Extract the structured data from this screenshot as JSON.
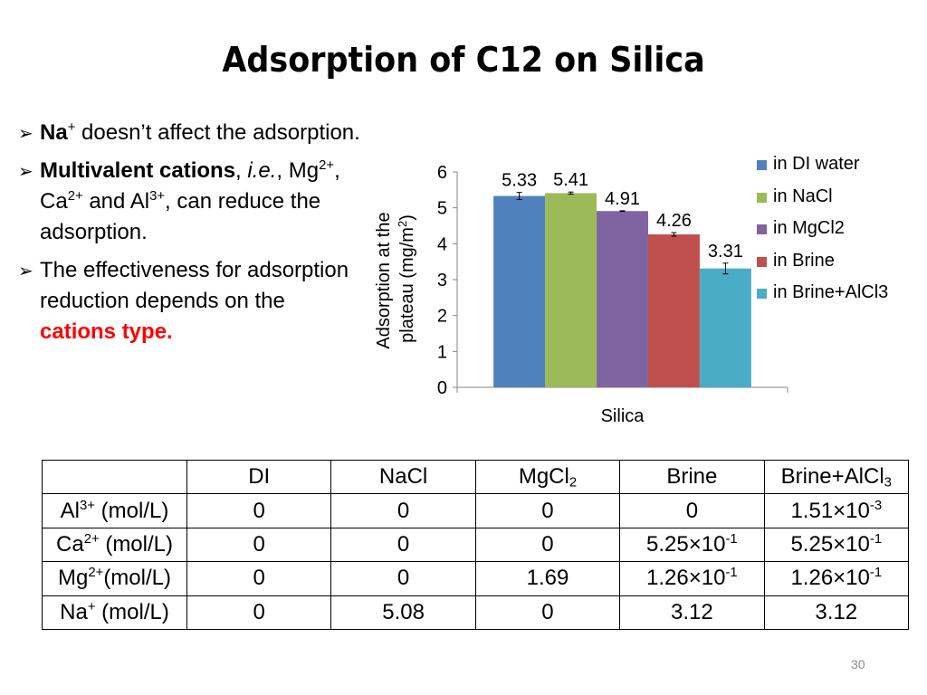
{
  "title": "Adsorption of C12 on Silica",
  "bullets": {
    "b1": {
      "na": "Na",
      "na_sup": "+",
      "rest": " doesn’t affect the adsorption."
    },
    "b2": {
      "bold": "Multivalent cations",
      "comma": ", ",
      "ie": "i.e.",
      "comma2": ", ",
      "mg": "Mg",
      "mg_sup": "2+",
      "sep1": ", ",
      "ca": "Ca",
      "ca_sup": "2+",
      "sep2": " and ",
      "al": "Al",
      "al_sup": "3+",
      "rest": ", can reduce the adsorption."
    },
    "b3": {
      "text": "The effectiveness for adsorption reduction depends on the ",
      "red": "cations type."
    }
  },
  "chart_data": {
    "type": "bar",
    "categories": [
      "Silica"
    ],
    "ylabel_line1": "Adsorption at the",
    "ylabel_line2": "plateau (mg/m",
    "ylabel_sup": "2",
    "ylabel_end": ")",
    "ylim": [
      0,
      6
    ],
    "yticks": [
      0,
      1,
      2,
      3,
      4,
      5,
      6
    ],
    "series": [
      {
        "name": "in DI water",
        "value": 5.33,
        "label": "5.33",
        "error": 0.1,
        "color": "#4f81bd"
      },
      {
        "name": "in NaCl",
        "value": 5.41,
        "label": "5.41",
        "error": 0.03,
        "color": "#9bbb59"
      },
      {
        "name": "in MgCl2",
        "value": 4.91,
        "label": "4.91",
        "error": 0.01,
        "color": "#8064a2"
      },
      {
        "name": "in Brine",
        "value": 4.26,
        "label": "4.26",
        "error": 0.05,
        "color": "#c0504d"
      },
      {
        "name": "in Brine+AlCl3",
        "value": 3.31,
        "label": "3.31",
        "error": 0.15,
        "color": "#4bacc6"
      }
    ],
    "legend_position": "right"
  },
  "table": {
    "header": {
      "c0": "",
      "c1": "DI",
      "c2": "NaCl",
      "c3_main": "MgCl",
      "c3_sub": "2",
      "c4": "Brine",
      "c5_main": "Brine+AlCl",
      "c5_sub": "3"
    },
    "rows": [
      {
        "ion": "Al",
        "ion_sup": "3+",
        "unit": " (mol/L)",
        "c1": "0",
        "c2": "0",
        "c3": "0",
        "c4": "0",
        "c5_main": "1.51×10",
        "c5_sup": "-3"
      },
      {
        "ion": "Ca",
        "ion_sup": "2+",
        "unit": " (mol/L)",
        "c1": "0",
        "c2": "0",
        "c3": "0",
        "c4_main": "5.25×10",
        "c4_sup": "-1",
        "c5_main": "5.25×10",
        "c5_sup": "-1"
      },
      {
        "ion": "Mg",
        "ion_sup": "2+",
        "unit": "(mol/L)",
        "c1": "0",
        "c2": "0",
        "c3": "1.69",
        "c4_main": "1.26×10",
        "c4_sup": "-1",
        "c5_main": "1.26×10",
        "c5_sup": "-1"
      },
      {
        "ion": "Na",
        "ion_sup": "+",
        "unit": " (mol/L)",
        "c1": "0",
        "c2": "5.08",
        "c3": "0",
        "c4": "3.12",
        "c5": "3.12"
      }
    ]
  },
  "page_number": "30"
}
